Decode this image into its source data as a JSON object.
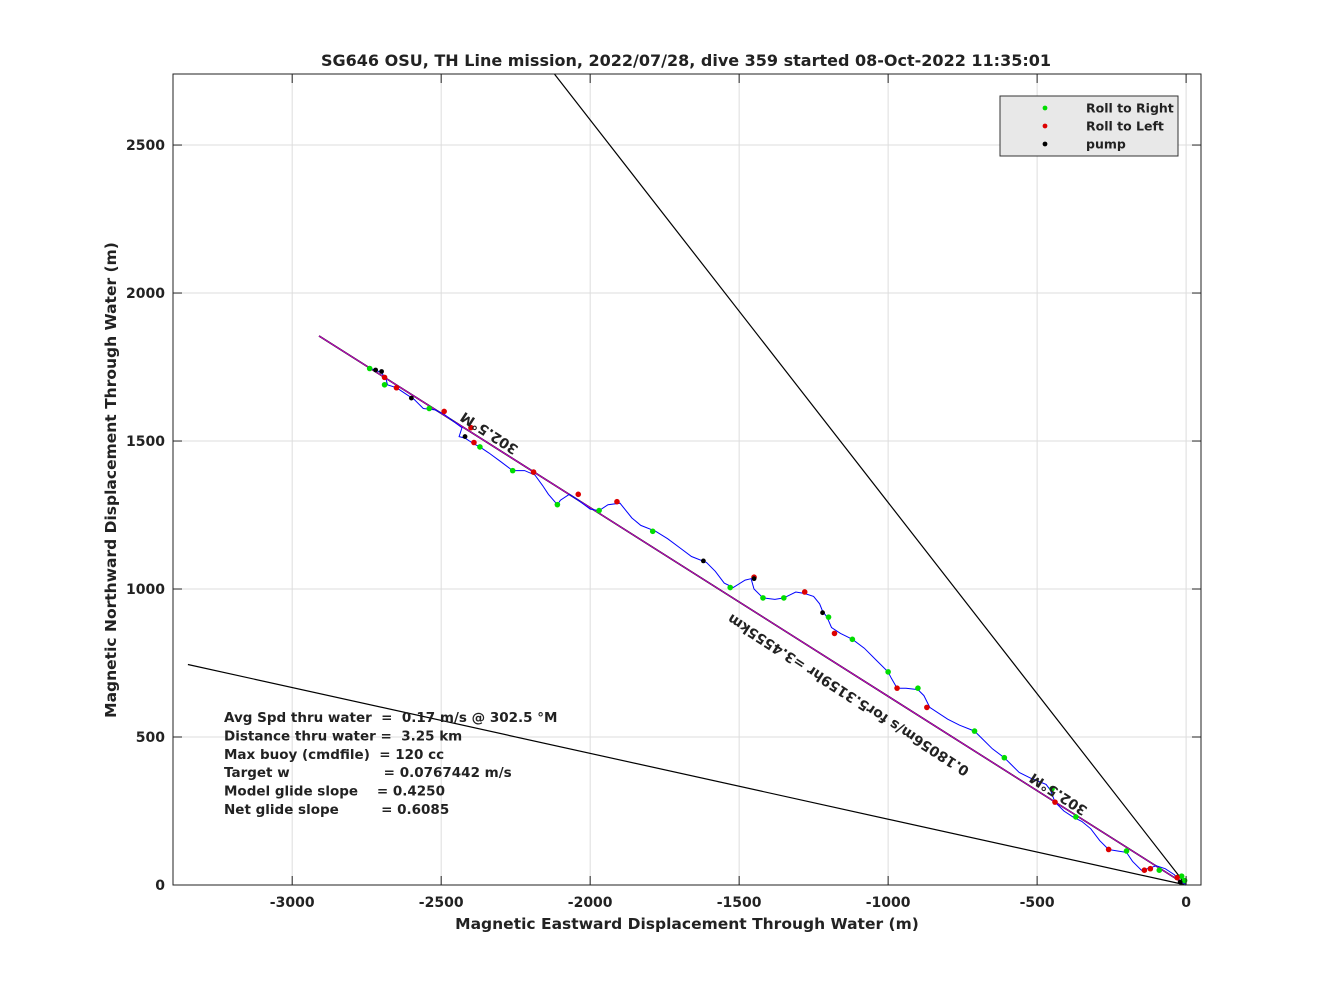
{
  "chart_data": {
    "type": "line",
    "title": "SG646 OSU, TH Line mission, 2022/07/28, dive 359 started 08-Oct-2022 11:35:01",
    "xlabel": "Magnetic Eastward Displacement Through Water (m)",
    "ylabel": "Magnetic Northward Displacement Through Water (m)",
    "xlim": [
      -3400,
      50
    ],
    "ylim": [
      0,
      2740
    ],
    "xticks": [
      -3000,
      -2500,
      -2000,
      -1500,
      -1000,
      -500,
      0
    ],
    "yticks": [
      0,
      500,
      1000,
      1500,
      2000,
      2500
    ],
    "grid": true,
    "legend": {
      "placement": "top-right",
      "entries": [
        {
          "label": "Roll to Right",
          "color": "#00dd00"
        },
        {
          "label": "Roll to Left",
          "color": "#dd0000"
        },
        {
          "label": "pump",
          "color": "#000000"
        }
      ]
    },
    "colors": {
      "track": "#0000ff",
      "heading_line": "#cc00cc",
      "cone": "#000000",
      "roll_right": "#00dd00",
      "roll_left": "#dd0000",
      "pump": "#000000"
    },
    "track": [
      [
        0,
        0
      ],
      [
        -20,
        15
      ],
      [
        -40,
        35
      ],
      [
        -70,
        55
      ],
      [
        -100,
        65
      ],
      [
        -130,
        55
      ],
      [
        -150,
        50
      ],
      [
        -180,
        80
      ],
      [
        -200,
        110
      ],
      [
        -230,
        115
      ],
      [
        -260,
        120
      ],
      [
        -290,
        150
      ],
      [
        -320,
        190
      ],
      [
        -350,
        215
      ],
      [
        -380,
        230
      ],
      [
        -410,
        250
      ],
      [
        -440,
        280
      ],
      [
        -455,
        320
      ],
      [
        -470,
        340
      ],
      [
        -520,
        360
      ],
      [
        -560,
        380
      ],
      [
        -590,
        410
      ],
      [
        -610,
        430
      ],
      [
        -650,
        460
      ],
      [
        -690,
        500
      ],
      [
        -710,
        520
      ],
      [
        -760,
        540
      ],
      [
        -800,
        560
      ],
      [
        -860,
        600
      ],
      [
        -880,
        640
      ],
      [
        -900,
        660
      ],
      [
        -940,
        665
      ],
      [
        -970,
        665
      ],
      [
        -990,
        700
      ],
      [
        -1000,
        720
      ],
      [
        -1040,
        760
      ],
      [
        -1080,
        800
      ],
      [
        -1120,
        830
      ],
      [
        -1160,
        850
      ],
      [
        -1190,
        870
      ],
      [
        -1205,
        905
      ],
      [
        -1220,
        925
      ],
      [
        -1230,
        950
      ],
      [
        -1250,
        975
      ],
      [
        -1280,
        985
      ],
      [
        -1310,
        990
      ],
      [
        -1350,
        970
      ],
      [
        -1380,
        965
      ],
      [
        -1420,
        970
      ],
      [
        -1450,
        1000
      ],
      [
        -1460,
        1035
      ],
      [
        -1480,
        1030
      ],
      [
        -1520,
        1005
      ],
      [
        -1550,
        1020
      ],
      [
        -1580,
        1060
      ],
      [
        -1610,
        1090
      ],
      [
        -1660,
        1110
      ],
      [
        -1700,
        1140
      ],
      [
        -1740,
        1170
      ],
      [
        -1780,
        1195
      ],
      [
        -1830,
        1215
      ],
      [
        -1860,
        1240
      ],
      [
        -1900,
        1290
      ],
      [
        -1940,
        1285
      ],
      [
        -1970,
        1265
      ],
      [
        -2000,
        1270
      ],
      [
        -2040,
        1300
      ],
      [
        -2070,
        1320
      ],
      [
        -2100,
        1300
      ],
      [
        -2110,
        1285
      ],
      [
        -2140,
        1320
      ],
      [
        -2160,
        1350
      ],
      [
        -2185,
        1385
      ],
      [
        -2220,
        1400
      ],
      [
        -2260,
        1400
      ],
      [
        -2300,
        1430
      ],
      [
        -2340,
        1460
      ],
      [
        -2370,
        1480
      ],
      [
        -2390,
        1490
      ],
      [
        -2420,
        1510
      ],
      [
        -2440,
        1515
      ],
      [
        -2430,
        1545
      ],
      [
        -2450,
        1560
      ],
      [
        -2490,
        1590
      ],
      [
        -2520,
        1605
      ],
      [
        -2560,
        1610
      ],
      [
        -2590,
        1640
      ],
      [
        -2620,
        1660
      ],
      [
        -2650,
        1680
      ],
      [
        -2680,
        1690
      ],
      [
        -2685,
        1710
      ],
      [
        -2700,
        1730
      ],
      [
        -2720,
        1740
      ],
      [
        -2740,
        1745
      ]
    ],
    "roll_right_points": [
      [
        -5,
        15
      ],
      [
        -15,
        30
      ],
      [
        -90,
        50
      ],
      [
        -200,
        115
      ],
      [
        -370,
        230
      ],
      [
        -450,
        325
      ],
      [
        -610,
        430
      ],
      [
        -710,
        520
      ],
      [
        -900,
        665
      ],
      [
        -1000,
        720
      ],
      [
        -1120,
        830
      ],
      [
        -1200,
        905
      ],
      [
        -1350,
        970
      ],
      [
        -1420,
        970
      ],
      [
        -1530,
        1005
      ],
      [
        -1790,
        1195
      ],
      [
        -1970,
        1265
      ],
      [
        -2110,
        1285
      ],
      [
        -2260,
        1400
      ],
      [
        -2370,
        1480
      ],
      [
        -2540,
        1610
      ],
      [
        -2690,
        1690
      ],
      [
        -2740,
        1745
      ]
    ],
    "roll_left_points": [
      [
        -30,
        25
      ],
      [
        -120,
        55
      ],
      [
        -140,
        50
      ],
      [
        -260,
        120
      ],
      [
        -440,
        280
      ],
      [
        -870,
        600
      ],
      [
        -970,
        665
      ],
      [
        -1180,
        850
      ],
      [
        -1280,
        990
      ],
      [
        -1450,
        1040
      ],
      [
        -1910,
        1295
      ],
      [
        -2040,
        1320
      ],
      [
        -2190,
        1395
      ],
      [
        -2390,
        1495
      ],
      [
        -2400,
        1545
      ],
      [
        -2490,
        1600
      ],
      [
        -2650,
        1680
      ],
      [
        -2690,
        1715
      ]
    ],
    "pump_points": [
      [
        -20,
        10
      ],
      [
        -1220,
        920
      ],
      [
        -1450,
        1035
      ],
      [
        -1620,
        1095
      ],
      [
        -2420,
        1515
      ],
      [
        -2600,
        1645
      ],
      [
        -2700,
        1735
      ],
      [
        -2720,
        1740
      ]
    ],
    "heading_line_end": [
      -2910,
      1855
    ],
    "cone_lines": [
      {
        "end": [
          -2120,
          2740
        ]
      },
      {
        "end": [
          -3350,
          745
        ]
      }
    ],
    "annotations": {
      "heading_label_upper": {
        "text": "302.5°M",
        "at": [
          -2330,
          1540
        ],
        "rotate_deg": 33
      },
      "heading_label_lower": {
        "text": "302.5°M",
        "at": [
          -420,
          320
        ],
        "rotate_deg": 33
      },
      "speed_label": {
        "text": "0.18056m/s for5.3159hr =3.4555km",
        "at": [
          -1125,
          655
        ],
        "rotate_deg": 33
      }
    },
    "stats": [
      "Avg Spd thru water  =  0.17 m/s @ 302.5 °M",
      "Distance thru water =  3.25 km",
      "Max buoy (cmdfile)  = 120 cc",
      "Target w                    = 0.0767442 m/s",
      "Model glide slope    = 0.4250",
      "Net glide slope         = 0.6085"
    ]
  }
}
